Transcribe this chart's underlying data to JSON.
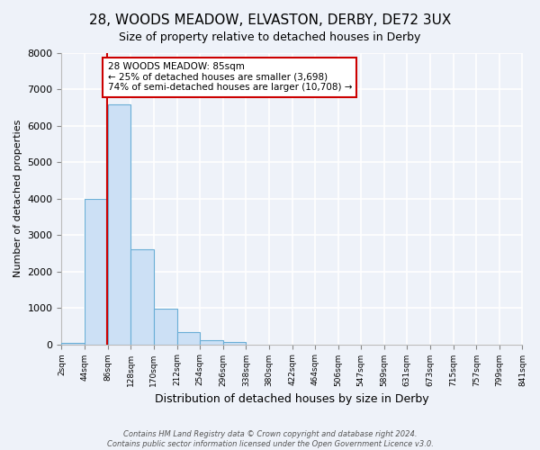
{
  "title": "28, WOODS MEADOW, ELVASTON, DERBY, DE72 3UX",
  "subtitle": "Size of property relative to detached houses in Derby",
  "xlabel": "Distribution of detached houses by size in Derby",
  "ylabel": "Number of detached properties",
  "bin_edges": [
    2,
    44,
    86,
    128,
    170,
    212,
    254,
    296,
    338,
    380,
    422,
    464,
    506,
    547,
    589,
    631,
    673,
    715,
    757,
    799,
    841
  ],
  "bar_heights": [
    50,
    4000,
    6600,
    2600,
    970,
    330,
    120,
    70,
    0,
    0,
    0,
    0,
    0,
    0,
    0,
    0,
    0,
    0,
    0,
    0
  ],
  "bar_color": "#cce0f5",
  "bar_edge_color": "#6aaed6",
  "property_size": 85,
  "vline_color": "#cc0000",
  "annotation_line1": "28 WOODS MEADOW: 85sqm",
  "annotation_line2": "← 25% of detached houses are smaller (3,698)",
  "annotation_line3": "74% of semi-detached houses are larger (10,708) →",
  "annotation_box_color": "#ffffff",
  "annotation_box_edge_color": "#cc0000",
  "ylim": [
    0,
    8000
  ],
  "yticks": [
    0,
    1000,
    2000,
    3000,
    4000,
    5000,
    6000,
    7000,
    8000
  ],
  "tick_labels": [
    "2sqm",
    "44sqm",
    "86sqm",
    "128sqm",
    "170sqm",
    "212sqm",
    "254sqm",
    "296sqm",
    "338sqm",
    "380sqm",
    "422sqm",
    "464sqm",
    "506sqm",
    "547sqm",
    "589sqm",
    "631sqm",
    "673sqm",
    "715sqm",
    "757sqm",
    "799sqm",
    "841sqm"
  ],
  "bg_color": "#eef2f9",
  "grid_color": "#ffffff",
  "footnote": "Contains HM Land Registry data © Crown copyright and database right 2024.\nContains public sector information licensed under the Open Government Licence v3.0."
}
